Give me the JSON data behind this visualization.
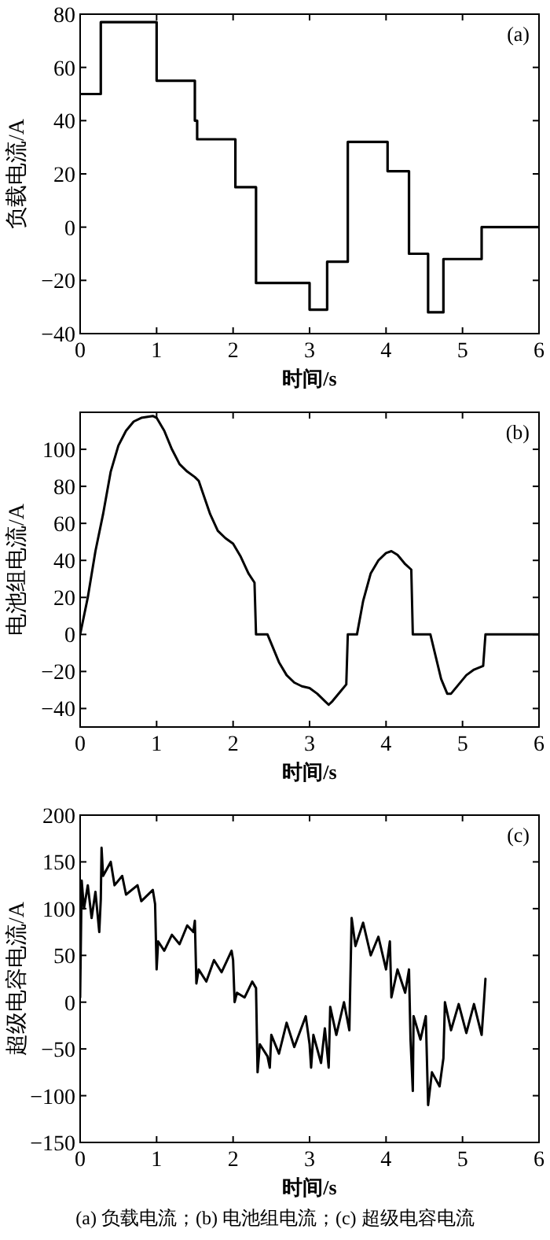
{
  "chart_data": [
    {
      "type": "step",
      "title": "(a)",
      "xlabel": "时间/s",
      "ylabel": "负载电流/A",
      "xlim": [
        0,
        6
      ],
      "ylim": [
        -40,
        80
      ],
      "xticks": [
        0,
        1,
        2,
        3,
        4,
        5,
        6
      ],
      "yticks": [
        -40,
        -20,
        0,
        20,
        40,
        60,
        80
      ],
      "grid": false,
      "series": [
        {
          "color": "#000000",
          "x": [
            0,
            0.27,
            1.0,
            1.5,
            1.53,
            2.03,
            2.3,
            3.0,
            3.23,
            3.5,
            4.02,
            4.3,
            4.55,
            4.75,
            5.25,
            6
          ],
          "values": [
            50,
            77,
            55,
            40,
            33,
            15,
            -21,
            -31,
            -13,
            32,
            21,
            -10,
            -32,
            -12,
            0,
            0
          ]
        }
      ]
    },
    {
      "type": "line",
      "title": "(b)",
      "xlabel": "时间/s",
      "ylabel": "电池组电流/A",
      "xlim": [
        0,
        6
      ],
      "ylim": [
        -50,
        120
      ],
      "xticks": [
        0,
        1,
        2,
        3,
        4,
        5,
        6
      ],
      "yticks": [
        -40,
        -20,
        0,
        20,
        40,
        60,
        80,
        100
      ],
      "grid": false,
      "series": [
        {
          "color": "#000000",
          "x": [
            0,
            0.1,
            0.2,
            0.3,
            0.4,
            0.5,
            0.6,
            0.7,
            0.8,
            0.95,
            1.0,
            1.1,
            1.2,
            1.3,
            1.4,
            1.5,
            1.55,
            1.6,
            1.7,
            1.8,
            1.9,
            2.0,
            2.1,
            2.2,
            2.28,
            2.3,
            2.45,
            2.5,
            2.6,
            2.7,
            2.8,
            2.9,
            3.0,
            3.1,
            3.2,
            3.25,
            3.3,
            3.4,
            3.48,
            3.5,
            3.62,
            3.7,
            3.8,
            3.9,
            4.0,
            4.07,
            4.15,
            4.25,
            4.33,
            4.35,
            4.58,
            4.65,
            4.72,
            4.8,
            4.85,
            4.95,
            5.05,
            5.15,
            5.27,
            5.3,
            6
          ],
          "values": [
            0,
            20,
            45,
            65,
            88,
            102,
            110,
            115,
            117,
            118,
            117,
            110,
            100,
            92,
            88,
            85,
            83,
            77,
            65,
            56,
            52,
            49,
            42,
            33,
            28,
            0,
            0,
            -5,
            -15,
            -22,
            -26,
            -28,
            -29,
            -32,
            -36,
            -38,
            -36,
            -31,
            -27,
            0,
            0,
            18,
            33,
            40,
            44,
            45,
            43,
            38,
            35,
            0,
            0,
            -12,
            -24,
            -32,
            -32,
            -27,
            -22,
            -19,
            -17,
            0,
            0
          ]
        }
      ]
    },
    {
      "type": "line",
      "title": "(c)",
      "xlabel": "时间/s",
      "ylabel": "超级电容电流/A",
      "xlim": [
        0,
        6
      ],
      "ylim": [
        -150,
        200
      ],
      "xticks": [
        0,
        1,
        2,
        3,
        4,
        5,
        6
      ],
      "yticks": [
        -150,
        -100,
        -50,
        0,
        50,
        100,
        150,
        200
      ],
      "grid": false,
      "annotations": [
        "(a) 负载电流；(b) 电池组电流；(c) 超级电容电流"
      ],
      "series": [
        {
          "color": "#000000",
          "x": [
            0,
            0.02,
            0.05,
            0.1,
            0.15,
            0.2,
            0.25,
            0.27,
            0.28,
            0.3,
            0.4,
            0.45,
            0.55,
            0.6,
            0.75,
            0.8,
            0.95,
            0.98,
            1.0,
            1.02,
            1.1,
            1.2,
            1.3,
            1.4,
            1.48,
            1.5,
            1.52,
            1.55,
            1.65,
            1.75,
            1.85,
            1.98,
            2.0,
            2.02,
            2.05,
            2.15,
            2.25,
            2.3,
            2.32,
            2.35,
            2.45,
            2.48,
            2.5,
            2.6,
            2.7,
            2.8,
            2.95,
            3.0,
            3.02,
            3.05,
            3.15,
            3.2,
            3.25,
            3.27,
            3.35,
            3.45,
            3.52,
            3.55,
            3.6,
            3.7,
            3.8,
            3.9,
            4.0,
            4.05,
            4.07,
            4.15,
            4.25,
            4.3,
            4.32,
            4.35,
            4.36,
            4.45,
            4.52,
            4.55,
            4.6,
            4.7,
            4.75,
            4.77,
            4.85,
            4.95,
            5.05,
            5.15,
            5.25,
            5.28,
            5.3
          ],
          "values": [
            5,
            130,
            100,
            125,
            90,
            118,
            75,
            110,
            165,
            135,
            150,
            125,
            135,
            115,
            125,
            108,
            120,
            105,
            35,
            65,
            55,
            72,
            62,
            82,
            75,
            87,
            20,
            35,
            22,
            45,
            32,
            55,
            45,
            0,
            10,
            5,
            22,
            15,
            -75,
            -45,
            -58,
            -70,
            -35,
            -55,
            -22,
            -48,
            -15,
            -45,
            -70,
            -35,
            -65,
            -28,
            -70,
            -5,
            -35,
            0,
            -30,
            90,
            60,
            85,
            50,
            70,
            35,
            65,
            5,
            35,
            10,
            35,
            -40,
            -95,
            -15,
            -40,
            -15,
            -110,
            -75,
            -90,
            -60,
            0,
            -30,
            -2,
            -33,
            -2,
            -35,
            0,
            25
          ]
        }
      ]
    }
  ]
}
